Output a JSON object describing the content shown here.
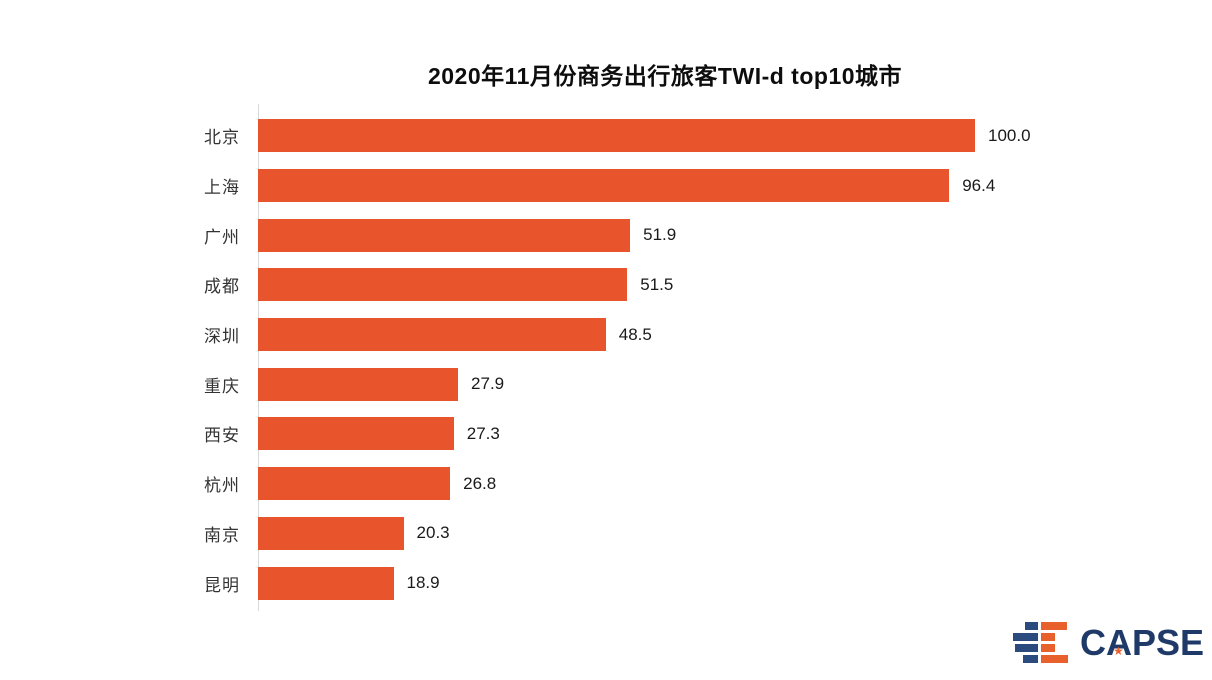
{
  "title": "2020年11月份商务出行旅客TWI-d top10城市",
  "chart_data": {
    "type": "bar",
    "orientation": "horizontal",
    "title": "2020年11月份商务出行旅客TWI-d top10城市",
    "categories": [
      "北京",
      "上海",
      "广州",
      "成都",
      "深圳",
      "重庆",
      "西安",
      "杭州",
      "南京",
      "昆明"
    ],
    "values": [
      100.0,
      96.4,
      51.9,
      51.5,
      48.5,
      27.9,
      27.3,
      26.8,
      20.3,
      18.9
    ],
    "xlabel": "",
    "ylabel": "",
    "xlim": [
      0,
      100
    ],
    "grid": false,
    "legend": false,
    "value_labels": "outside-end, one decimal",
    "bar_color": "#E8542C",
    "axis_line_color": "#D9D9D9",
    "label_color": "#333333",
    "value_color": "#1A1A1A"
  },
  "logo": {
    "text": "CAPSE",
    "star": "★",
    "text_color": "#1F3A68",
    "icon_blue": "#2B4B7E",
    "icon_orange": "#E8602C"
  }
}
